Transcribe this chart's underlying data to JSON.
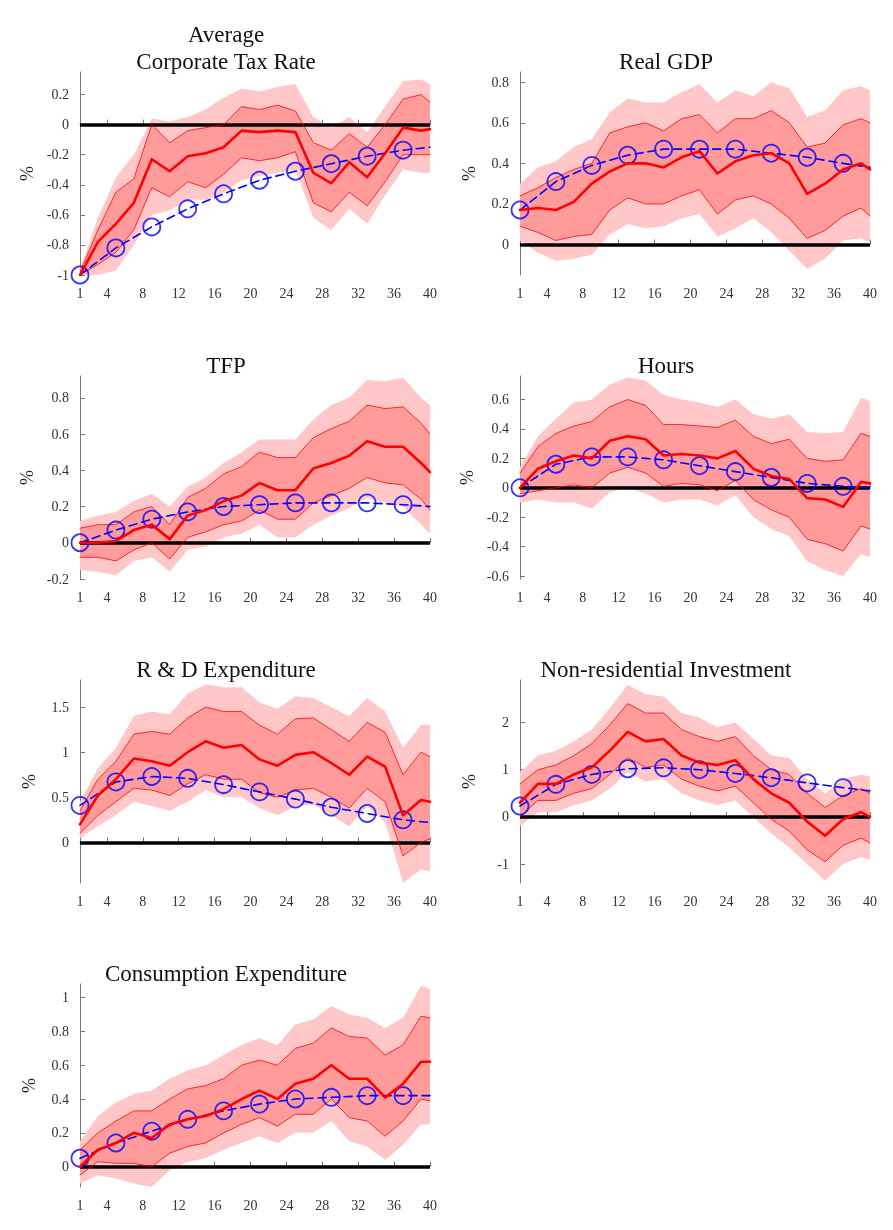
{
  "chart_data": [
    {
      "type": "line",
      "title": "Average\nCorporate Tax Rate",
      "ylabel": "%",
      "x": [
        1,
        3,
        5,
        7,
        9,
        11,
        13,
        15,
        17,
        19,
        21,
        23,
        25,
        27,
        29,
        31,
        33,
        35,
        37,
        39,
        40
      ],
      "xlim": [
        1,
        40
      ],
      "xticks": [
        1,
        4,
        8,
        12,
        16,
        20,
        24,
        28,
        32,
        36,
        40
      ],
      "ylim": [
        -1,
        0.35
      ],
      "yticks": [
        -1,
        -0.8,
        -0.6,
        -0.4,
        -0.2,
        0,
        0.2
      ],
      "grid": false,
      "ref_lines": [
        {
          "axis": "y",
          "value": 0,
          "color": "#000000"
        }
      ],
      "series": [
        {
          "color": "#ff0000",
          "values": [
            -1,
            -0.78,
            -0.66,
            -0.52,
            -0.23,
            -0.31,
            -0.21,
            -0.19,
            -0.15,
            -0.04,
            -0.05,
            -0.04,
            -0.05,
            -0.32,
            -0.39,
            -0.25,
            -0.35,
            -0.19,
            -0.02,
            -0.04,
            -0.03
          ],
          "lower": [
            -1,
            -1,
            -0.97,
            -0.8,
            -0.6,
            -0.57,
            -0.5,
            -0.5,
            -0.45,
            -0.37,
            -0.34,
            -0.32,
            -0.3,
            -0.62,
            -0.7,
            -0.56,
            -0.66,
            -0.47,
            -0.3,
            -0.32,
            -0.32
          ],
          "upper": [
            -0.96,
            -0.62,
            -0.35,
            -0.2,
            0.04,
            0.02,
            0.05,
            0.1,
            0.18,
            0.24,
            0.22,
            0.25,
            0.27,
            0.05,
            -0.02,
            0.05,
            -0.05,
            0.12,
            0.29,
            0.3,
            0.27
          ]
        },
        {
          "color": "#ff0000",
          "values": [
            -0.98,
            -0.7,
            -0.45,
            -0.36,
            0,
            -0.12,
            -0.04,
            -0.02,
            0,
            0.12,
            0.1,
            0.13,
            0.09,
            -0.12,
            -0.17,
            -0.06,
            -0.15,
            0,
            0.17,
            0.2,
            0.15
          ],
          "lower": [
            -1,
            -0.93,
            -0.85,
            -0.7,
            -0.42,
            -0.48,
            -0.38,
            -0.42,
            -0.33,
            -0.22,
            -0.24,
            -0.22,
            -0.18,
            -0.52,
            -0.58,
            -0.45,
            -0.54,
            -0.38,
            -0.2,
            -0.2,
            -0.2
          ],
          "upper": [
            -0.98,
            -0.7,
            -0.45,
            -0.36,
            0,
            -0.12,
            -0.04,
            -0.02,
            0,
            0.12,
            0.1,
            0.13,
            0.09,
            -0.12,
            -0.17,
            -0.06,
            -0.15,
            0,
            0.17,
            0.2,
            0.15
          ]
        },
        {
          "color": "#ff0000",
          "values": [
            -1,
            -0.93,
            -0.85,
            -0.7,
            -0.42,
            -0.48,
            -0.38,
            -0.42,
            -0.33,
            -0.22,
            -0.24,
            -0.22,
            -0.18,
            -0.52,
            -0.58,
            -0.45,
            -0.54,
            -0.38,
            -0.2,
            -0.2,
            -0.2
          ]
        },
        {
          "color": "#0000ff",
          "x": [
            1,
            5,
            9,
            13,
            17,
            21,
            25,
            29,
            33,
            37,
            40
          ],
          "values": [
            -1,
            -0.82,
            -0.68,
            -0.56,
            -0.46,
            -0.37,
            -0.31,
            -0.26,
            -0.21,
            -0.17,
            -0.15
          ],
          "line_style": "dashed",
          "marker": "none"
        },
        {
          "type": "scatter",
          "color": "#0000ff",
          "x": [
            1,
            5,
            9,
            13,
            17,
            21,
            25,
            29,
            33,
            37
          ],
          "values": [
            -1,
            -0.82,
            -0.68,
            -0.56,
            -0.46,
            -0.37,
            -0.31,
            -0.26,
            -0.21,
            -0.17
          ],
          "marker": "circle"
        }
      ]
    },
    {
      "type": "line",
      "title": "Real GDP",
      "ylabel": "%",
      "x": [
        1,
        3,
        5,
        7,
        9,
        11,
        13,
        15,
        17,
        19,
        21,
        23,
        25,
        27,
        29,
        31,
        33,
        35,
        37,
        39,
        40
      ],
      "xlim": [
        1,
        40
      ],
      "xticks": [
        1,
        4,
        8,
        12,
        16,
        20,
        24,
        28,
        32,
        36,
        40
      ],
      "ylim": [
        -0.15,
        0.85
      ],
      "yticks": [
        0,
        0.2,
        0.4,
        0.6,
        0.8
      ],
      "grid": false,
      "ref_lines": [
        {
          "axis": "y",
          "value": 0,
          "color": "#000000"
        }
      ],
      "series": [
        {
          "color": "#ff0000",
          "values": [
            0.17,
            0.18,
            0.17,
            0.21,
            0.3,
            0.36,
            0.4,
            0.4,
            0.38,
            0.43,
            0.46,
            0.35,
            0.41,
            0.44,
            0.45,
            0.4,
            0.25,
            0.3,
            0.37,
            0.4,
            0.37
          ],
          "lower": [
            0.02,
            -0.04,
            -0.08,
            -0.07,
            -0.05,
            0.05,
            0.1,
            0.08,
            0.09,
            0.13,
            0.15,
            0.04,
            0.08,
            0.13,
            0.06,
            -0.03,
            -0.12,
            -0.07,
            0.02,
            0.03,
            0.01
          ],
          "upper": [
            0.3,
            0.38,
            0.41,
            0.48,
            0.52,
            0.65,
            0.72,
            0.7,
            0.7,
            0.75,
            0.79,
            0.7,
            0.76,
            0.73,
            0.8,
            0.77,
            0.63,
            0.66,
            0.76,
            0.78,
            0.76
          ]
        },
        {
          "color": "#ff0000",
          "values": [
            0.24,
            0.28,
            0.33,
            0.37,
            0.4,
            0.55,
            0.58,
            0.6,
            0.56,
            0.62,
            0.64,
            0.55,
            0.62,
            0.62,
            0.66,
            0.6,
            0.48,
            0.5,
            0.59,
            0.62,
            0.6
          ],
          "lower": [
            0.09,
            0.06,
            0.02,
            0.04,
            0.05,
            0.17,
            0.23,
            0.2,
            0.2,
            0.24,
            0.27,
            0.15,
            0.22,
            0.24,
            0.2,
            0.13,
            0.03,
            0.07,
            0.14,
            0.18,
            0.14
          ],
          "upper": [
            0.24,
            0.28,
            0.33,
            0.37,
            0.4,
            0.55,
            0.58,
            0.6,
            0.56,
            0.62,
            0.64,
            0.55,
            0.62,
            0.62,
            0.66,
            0.6,
            0.48,
            0.5,
            0.59,
            0.62,
            0.6
          ]
        },
        {
          "color": "#ff0000",
          "values": [
            0.09,
            0.06,
            0.02,
            0.04,
            0.05,
            0.17,
            0.23,
            0.2,
            0.2,
            0.24,
            0.27,
            0.15,
            0.22,
            0.24,
            0.2,
            0.13,
            0.03,
            0.07,
            0.14,
            0.18,
            0.14
          ]
        },
        {
          "color": "#0000ff",
          "x": [
            1,
            5,
            9,
            13,
            17,
            21,
            25,
            29,
            33,
            37,
            40
          ],
          "values": [
            0.17,
            0.31,
            0.39,
            0.44,
            0.47,
            0.47,
            0.47,
            0.45,
            0.43,
            0.4,
            0.38
          ],
          "line_style": "dashed",
          "marker": "none"
        },
        {
          "type": "scatter",
          "color": "#0000ff",
          "x": [
            1,
            5,
            9,
            13,
            17,
            21,
            25,
            29,
            33,
            37
          ],
          "values": [
            0.17,
            0.31,
            0.39,
            0.44,
            0.47,
            0.47,
            0.47,
            0.45,
            0.43,
            0.4
          ],
          "marker": "circle"
        }
      ]
    },
    {
      "type": "line",
      "title": "TFP",
      "ylabel": "%",
      "x": [
        1,
        3,
        5,
        7,
        9,
        11,
        13,
        15,
        17,
        19,
        21,
        23,
        25,
        27,
        29,
        31,
        33,
        35,
        37,
        39,
        40
      ],
      "xlim": [
        1,
        40
      ],
      "xticks": [
        1,
        4,
        8,
        12,
        16,
        20,
        24,
        28,
        32,
        36,
        40
      ],
      "ylim": [
        -0.2,
        0.92
      ],
      "yticks": [
        -0.2,
        0,
        0.2,
        0.4,
        0.6,
        0.8
      ],
      "grid": false,
      "ref_lines": [
        {
          "axis": "y",
          "value": 0,
          "color": "#000000"
        }
      ],
      "series": [
        {
          "color": "#ff0000",
          "values": [
            0,
            0,
            0.01,
            0.07,
            0.1,
            0.02,
            0.15,
            0.18,
            0.23,
            0.26,
            0.33,
            0.29,
            0.29,
            0.41,
            0.44,
            0.48,
            0.56,
            0.53,
            0.53,
            0.44,
            0.39
          ],
          "lower": [
            -0.15,
            -0.16,
            -0.18,
            -0.1,
            -0.08,
            -0.16,
            -0.04,
            -0.02,
            0.03,
            0.05,
            0.1,
            0.03,
            0.03,
            0.1,
            0.15,
            0.19,
            0.25,
            0.22,
            0.2,
            0.1,
            0.05
          ],
          "upper": [
            0.12,
            0.15,
            0.17,
            0.23,
            0.27,
            0.2,
            0.31,
            0.36,
            0.44,
            0.5,
            0.57,
            0.57,
            0.57,
            0.68,
            0.76,
            0.8,
            0.9,
            0.89,
            0.91,
            0.8,
            0.76
          ]
        },
        {
          "color": "#ff0000",
          "values": [
            0.08,
            0.1,
            0.1,
            0.17,
            0.2,
            0.1,
            0.25,
            0.3,
            0.38,
            0.42,
            0.5,
            0.47,
            0.47,
            0.58,
            0.63,
            0.67,
            0.76,
            0.74,
            0.75,
            0.66,
            0.6
          ],
          "lower": [
            -0.08,
            -0.08,
            -0.1,
            -0.04,
            0,
            -0.09,
            0.03,
            0.06,
            0.1,
            0.12,
            0.18,
            0.13,
            0.13,
            0.22,
            0.26,
            0.3,
            0.36,
            0.33,
            0.32,
            0.24,
            0.18
          ],
          "upper": [
            0.08,
            0.1,
            0.1,
            0.17,
            0.2,
            0.1,
            0.25,
            0.3,
            0.38,
            0.42,
            0.5,
            0.47,
            0.47,
            0.58,
            0.63,
            0.67,
            0.76,
            0.74,
            0.75,
            0.66,
            0.6
          ]
        },
        {
          "color": "#ff0000",
          "values": [
            -0.08,
            -0.08,
            -0.1,
            -0.04,
            0,
            -0.09,
            0.03,
            0.06,
            0.1,
            0.12,
            0.18,
            0.13,
            0.13,
            0.22,
            0.26,
            0.3,
            0.36,
            0.33,
            0.32,
            0.24,
            0.18
          ]
        },
        {
          "color": "#0000ff",
          "x": [
            1,
            5,
            9,
            13,
            17,
            21,
            25,
            29,
            33,
            37,
            40
          ],
          "values": [
            0,
            0.07,
            0.13,
            0.17,
            0.2,
            0.21,
            0.22,
            0.22,
            0.22,
            0.21,
            0.2
          ],
          "line_style": "dashed",
          "marker": "none"
        },
        {
          "type": "scatter",
          "color": "#0000ff",
          "x": [
            1,
            5,
            9,
            13,
            17,
            21,
            25,
            29,
            33,
            37
          ],
          "values": [
            0,
            0.07,
            0.13,
            0.17,
            0.2,
            0.21,
            0.22,
            0.22,
            0.22,
            0.21
          ],
          "marker": "circle"
        }
      ]
    },
    {
      "type": "line",
      "title": "Hours",
      "ylabel": "%",
      "x": [
        1,
        3,
        5,
        7,
        9,
        11,
        13,
        15,
        17,
        19,
        21,
        23,
        25,
        27,
        29,
        31,
        33,
        35,
        37,
        39,
        40
      ],
      "xlim": [
        1,
        40
      ],
      "xticks": [
        1,
        4,
        8,
        12,
        16,
        20,
        24,
        28,
        32,
        36,
        40
      ],
      "ylim": [
        -0.62,
        0.76
      ],
      "yticks": [
        -0.6,
        -0.4,
        -0.2,
        0,
        0.2,
        0.4,
        0.6
      ],
      "grid": false,
      "ref_lines": [
        {
          "axis": "y",
          "value": 0,
          "color": "#000000"
        }
      ],
      "series": [
        {
          "color": "#ff0000",
          "values": [
            0,
            0.13,
            0.18,
            0.22,
            0.2,
            0.32,
            0.35,
            0.33,
            0.22,
            0.23,
            0.22,
            0.2,
            0.25,
            0.13,
            0.08,
            0.06,
            -0.07,
            -0.08,
            -0.13,
            0.04,
            0.03
          ],
          "lower": [
            -0.1,
            -0.08,
            -0.1,
            -0.1,
            -0.14,
            -0.03,
            0,
            -0.04,
            -0.1,
            -0.08,
            -0.08,
            -0.12,
            -0.05,
            -0.2,
            -0.28,
            -0.33,
            -0.5,
            -0.56,
            -0.6,
            -0.45,
            -0.47
          ],
          "upper": [
            0.14,
            0.35,
            0.47,
            0.58,
            0.6,
            0.7,
            0.75,
            0.73,
            0.63,
            0.6,
            0.58,
            0.55,
            0.6,
            0.5,
            0.47,
            0.5,
            0.38,
            0.37,
            0.38,
            0.61,
            0.59
          ]
        },
        {
          "color": "#ff0000",
          "values": [
            0.1,
            0.28,
            0.37,
            0.42,
            0.45,
            0.55,
            0.6,
            0.56,
            0.43,
            0.43,
            0.42,
            0.41,
            0.46,
            0.35,
            0.3,
            0.33,
            0.2,
            0.18,
            0.19,
            0.37,
            0.35
          ],
          "lower": [
            -0.04,
            -0.02,
            0,
            0.02,
            0,
            0.1,
            0.14,
            0.1,
            0.01,
            0.03,
            0.02,
            -0.02,
            0.05,
            -0.08,
            -0.15,
            -0.2,
            -0.35,
            -0.38,
            -0.43,
            -0.26,
            -0.28
          ],
          "upper": [
            0.1,
            0.28,
            0.37,
            0.42,
            0.45,
            0.55,
            0.6,
            0.56,
            0.43,
            0.43,
            0.42,
            0.41,
            0.46,
            0.35,
            0.3,
            0.33,
            0.2,
            0.18,
            0.19,
            0.37,
            0.35
          ]
        },
        {
          "color": "#ff0000",
          "values": [
            -0.04,
            -0.02,
            0,
            0.02,
            0,
            0.1,
            0.14,
            0.1,
            0.01,
            0.03,
            0.02,
            -0.02,
            0.05,
            -0.08,
            -0.15,
            -0.2,
            -0.35,
            -0.38,
            -0.43,
            -0.26,
            -0.28
          ]
        },
        {
          "color": "#0000ff",
          "x": [
            1,
            5,
            9,
            13,
            17,
            21,
            25,
            29,
            33,
            37,
            40
          ],
          "values": [
            0,
            0.16,
            0.21,
            0.21,
            0.19,
            0.15,
            0.11,
            0.07,
            0.03,
            0.01,
            0
          ],
          "line_style": "dashed",
          "marker": "none"
        },
        {
          "type": "scatter",
          "color": "#0000ff",
          "x": [
            1,
            5,
            9,
            13,
            17,
            21,
            25,
            29,
            33,
            37
          ],
          "values": [
            0,
            0.16,
            0.21,
            0.21,
            0.19,
            0.15,
            0.11,
            0.07,
            0.03,
            0.01
          ],
          "marker": "circle"
        }
      ]
    },
    {
      "type": "line",
      "title": "R & D Expenditure",
      "ylabel": "%",
      "x": [
        1,
        3,
        5,
        7,
        9,
        11,
        13,
        15,
        17,
        19,
        21,
        23,
        25,
        27,
        29,
        31,
        33,
        35,
        37,
        39,
        40
      ],
      "xlim": [
        1,
        40
      ],
      "xticks": [
        1,
        4,
        8,
        12,
        16,
        20,
        24,
        28,
        32,
        36,
        40
      ],
      "ylim": [
        -0.45,
        1.8
      ],
      "yticks": [
        0,
        0.5,
        1,
        1.5
      ],
      "grid": false,
      "ref_lines": [
        {
          "axis": "y",
          "value": 0,
          "color": "#000000"
        }
      ],
      "series": [
        {
          "color": "#ff0000",
          "values": [
            0.2,
            0.52,
            0.7,
            0.93,
            0.9,
            0.85,
            1,
            1.12,
            1.05,
            1.08,
            0.92,
            0.85,
            0.97,
            1,
            0.88,
            0.75,
            0.95,
            0.84,
            0.3,
            0.47,
            0.45
          ],
          "lower": [
            0.05,
            0.18,
            0.3,
            0.45,
            0.4,
            0.35,
            0.45,
            0.58,
            0.5,
            0.5,
            0.38,
            0.3,
            0.4,
            0.42,
            0.3,
            0.18,
            0.4,
            0.22,
            -0.45,
            -0.3,
            -0.32
          ],
          "upper": [
            0.45,
            0.82,
            1.05,
            1.4,
            1.45,
            1.42,
            1.65,
            1.75,
            1.72,
            1.72,
            1.55,
            1.48,
            1.62,
            1.6,
            1.5,
            1.4,
            1.6,
            1.45,
            1.05,
            1.3,
            1.3
          ]
        },
        {
          "color": "#ff0000",
          "values": [
            0.35,
            0.7,
            0.9,
            1.2,
            1.23,
            1.2,
            1.38,
            1.5,
            1.45,
            1.45,
            1.3,
            1.2,
            1.37,
            1.38,
            1.25,
            1.12,
            1.33,
            1.22,
            0.75,
            1,
            0.95
          ],
          "lower": [
            0.1,
            0.3,
            0.45,
            0.6,
            0.58,
            0.52,
            0.65,
            0.75,
            0.7,
            0.7,
            0.55,
            0.5,
            0.58,
            0.6,
            0.5,
            0.38,
            0.6,
            0.45,
            -0.15,
            0,
            0.04
          ],
          "upper": [
            0.35,
            0.7,
            0.9,
            1.2,
            1.23,
            1.2,
            1.38,
            1.5,
            1.45,
            1.45,
            1.3,
            1.2,
            1.37,
            1.38,
            1.25,
            1.12,
            1.33,
            1.22,
            0.75,
            1,
            0.95
          ]
        },
        {
          "color": "#ff0000",
          "values": [
            0.1,
            0.3,
            0.45,
            0.6,
            0.58,
            0.52,
            0.65,
            0.75,
            0.7,
            0.7,
            0.55,
            0.5,
            0.58,
            0.6,
            0.5,
            0.38,
            0.6,
            0.45,
            -0.15,
            0,
            0.04
          ]
        },
        {
          "color": "#0000ff",
          "x": [
            1,
            5,
            9,
            13,
            17,
            21,
            25,
            29,
            33,
            37,
            40
          ],
          "values": [
            0.41,
            0.67,
            0.73,
            0.71,
            0.64,
            0.56,
            0.48,
            0.39,
            0.32,
            0.25,
            0.22
          ],
          "line_style": "dashed",
          "marker": "none"
        },
        {
          "type": "scatter",
          "color": "#0000ff",
          "x": [
            1,
            5,
            9,
            13,
            17,
            21,
            25,
            29,
            33,
            37
          ],
          "values": [
            0.41,
            0.67,
            0.73,
            0.71,
            0.64,
            0.56,
            0.48,
            0.39,
            0.32,
            0.25
          ],
          "marker": "circle"
        }
      ]
    },
    {
      "type": "line",
      "title": "Non-residential Investment",
      "ylabel": "%",
      "x": [
        1,
        3,
        5,
        7,
        9,
        11,
        13,
        15,
        17,
        19,
        21,
        23,
        25,
        27,
        29,
        31,
        33,
        35,
        37,
        39,
        40
      ],
      "xlim": [
        1,
        40
      ],
      "xticks": [
        1,
        4,
        8,
        12,
        16,
        20,
        24,
        28,
        32,
        36,
        40
      ],
      "ylim": [
        -1.4,
        2.9
      ],
      "yticks": [
        -1,
        0,
        1,
        2
      ],
      "grid": false,
      "ref_lines": [
        {
          "axis": "y",
          "value": 0,
          "color": "#000000"
        }
      ],
      "series": [
        {
          "color": "#ff0000",
          "values": [
            0.3,
            0.7,
            0.7,
            0.9,
            1.05,
            1.4,
            1.8,
            1.6,
            1.65,
            1.3,
            1.15,
            1.1,
            1.2,
            0.8,
            0.5,
            0.3,
            -0.1,
            -0.4,
            -0.05,
            0.1,
            0
          ],
          "lower": [
            -0.2,
            0.1,
            0.1,
            0.25,
            0.35,
            0.6,
            0.95,
            0.75,
            0.8,
            0.5,
            0.35,
            0.25,
            0.35,
            0,
            -0.35,
            -0.65,
            -1,
            -1.35,
            -1,
            -0.85,
            -0.9
          ],
          "upper": [
            0.95,
            1.3,
            1.4,
            1.6,
            1.85,
            2.3,
            2.8,
            2.6,
            2.55,
            2.2,
            2.1,
            1.9,
            2,
            1.65,
            1.3,
            1.25,
            0.8,
            0.5,
            0.8,
            0.9,
            0.85
          ]
        },
        {
          "color": "#ff0000",
          "values": [
            0.7,
            1,
            1.1,
            1.3,
            1.55,
            1.95,
            2.4,
            2.2,
            2.2,
            1.85,
            1.7,
            1.6,
            1.7,
            1.3,
            1,
            0.9,
            0.5,
            0.2,
            0.45,
            0.6,
            0.5
          ],
          "lower": [
            0,
            0.35,
            0.35,
            0.5,
            0.6,
            0.9,
            1.25,
            1.05,
            1.1,
            0.8,
            0.65,
            0.55,
            0.65,
            0.3,
            -0.05,
            -0.3,
            -0.7,
            -0.95,
            -0.6,
            -0.45,
            -0.55
          ],
          "upper": [
            0.7,
            1,
            1.1,
            1.3,
            1.55,
            1.95,
            2.4,
            2.2,
            2.2,
            1.85,
            1.7,
            1.6,
            1.7,
            1.3,
            1,
            0.9,
            0.5,
            0.2,
            0.45,
            0.6,
            0.5
          ]
        },
        {
          "color": "#ff0000",
          "values": [
            0,
            0.35,
            0.35,
            0.5,
            0.6,
            0.9,
            1.25,
            1.05,
            1.1,
            0.8,
            0.65,
            0.55,
            0.65,
            0.3,
            -0.05,
            -0.3,
            -0.7,
            -0.95,
            -0.6,
            -0.45,
            -0.55
          ]
        },
        {
          "color": "#0000ff",
          "x": [
            1,
            5,
            9,
            13,
            17,
            21,
            25,
            29,
            33,
            37,
            40
          ],
          "values": [
            0.23,
            0.69,
            0.9,
            1.02,
            1.04,
            1,
            0.92,
            0.83,
            0.72,
            0.62,
            0.55
          ],
          "line_style": "dashed",
          "marker": "none"
        },
        {
          "type": "scatter",
          "color": "#0000ff",
          "x": [
            1,
            5,
            9,
            13,
            17,
            21,
            25,
            29,
            33,
            37
          ],
          "values": [
            0.23,
            0.69,
            0.9,
            1.02,
            1.04,
            1,
            0.92,
            0.83,
            0.72,
            0.62
          ],
          "marker": "circle"
        }
      ]
    },
    {
      "type": "line",
      "title": "Consumption Expenditure",
      "ylabel": "%",
      "x": [
        1,
        3,
        5,
        7,
        9,
        11,
        13,
        15,
        17,
        19,
        21,
        23,
        25,
        27,
        29,
        31,
        33,
        35,
        37,
        39,
        40
      ],
      "xlim": [
        1,
        40
      ],
      "xticks": [
        1,
        4,
        8,
        12,
        16,
        20,
        24,
        28,
        32,
        36,
        40
      ],
      "ylim": [
        -0.12,
        1.08
      ],
      "yticks": [
        0,
        0.2,
        0.4,
        0.6,
        0.8,
        1
      ],
      "grid": false,
      "ref_lines": [
        {
          "axis": "y",
          "value": 0,
          "color": "#000000"
        }
      ],
      "series": [
        {
          "color": "#ff0000",
          "values": [
            0,
            0.1,
            0.14,
            0.2,
            0.17,
            0.25,
            0.28,
            0.3,
            0.34,
            0.4,
            0.45,
            0.4,
            0.49,
            0.52,
            0.6,
            0.52,
            0.52,
            0.41,
            0.49,
            0.62,
            0.62
          ],
          "lower": [
            -0.1,
            -0.05,
            -0.07,
            -0.1,
            -0.12,
            -0.02,
            0.03,
            0.05,
            0.1,
            0.14,
            0.18,
            0.14,
            0.2,
            0.2,
            0.27,
            0.15,
            0.12,
            0.04,
            0.13,
            0.25,
            0.25
          ],
          "upper": [
            0.15,
            0.3,
            0.38,
            0.43,
            0.45,
            0.52,
            0.57,
            0.6,
            0.66,
            0.72,
            0.76,
            0.72,
            0.84,
            0.87,
            0.95,
            0.9,
            0.88,
            0.82,
            0.88,
            1.07,
            1.05
          ]
        },
        {
          "color": "#ff0000",
          "values": [
            0.1,
            0.2,
            0.27,
            0.33,
            0.33,
            0.4,
            0.46,
            0.48,
            0.52,
            0.6,
            0.63,
            0.6,
            0.7,
            0.73,
            0.82,
            0.77,
            0.76,
            0.66,
            0.72,
            0.89,
            0.88
          ],
          "lower": [
            -0.05,
            0.03,
            0.02,
            0.02,
            0,
            0.08,
            0.12,
            0.14,
            0.2,
            0.25,
            0.29,
            0.24,
            0.31,
            0.31,
            0.4,
            0.29,
            0.27,
            0.18,
            0.27,
            0.4,
            0.39
          ],
          "upper": [
            0.1,
            0.2,
            0.27,
            0.33,
            0.33,
            0.4,
            0.46,
            0.48,
            0.52,
            0.6,
            0.63,
            0.6,
            0.7,
            0.73,
            0.82,
            0.77,
            0.76,
            0.66,
            0.72,
            0.89,
            0.88
          ]
        },
        {
          "color": "#ff0000",
          "values": [
            -0.05,
            0.03,
            0.02,
            0.02,
            0,
            0.08,
            0.12,
            0.14,
            0.2,
            0.25,
            0.29,
            0.24,
            0.31,
            0.31,
            0.4,
            0.29,
            0.27,
            0.18,
            0.27,
            0.4,
            0.39
          ]
        },
        {
          "color": "#0000ff",
          "x": [
            1,
            5,
            9,
            13,
            17,
            21,
            25,
            29,
            33,
            37,
            40
          ],
          "values": [
            0.05,
            0.14,
            0.21,
            0.28,
            0.33,
            0.37,
            0.4,
            0.41,
            0.42,
            0.42,
            0.42
          ],
          "line_style": "dashed",
          "marker": "none"
        },
        {
          "type": "scatter",
          "color": "#0000ff",
          "x": [
            1,
            5,
            9,
            13,
            17,
            21,
            25,
            29,
            33,
            37
          ],
          "values": [
            0.05,
            0.14,
            0.21,
            0.28,
            0.33,
            0.37,
            0.4,
            0.41,
            0.42,
            0.42
          ],
          "marker": "circle"
        }
      ]
    }
  ]
}
